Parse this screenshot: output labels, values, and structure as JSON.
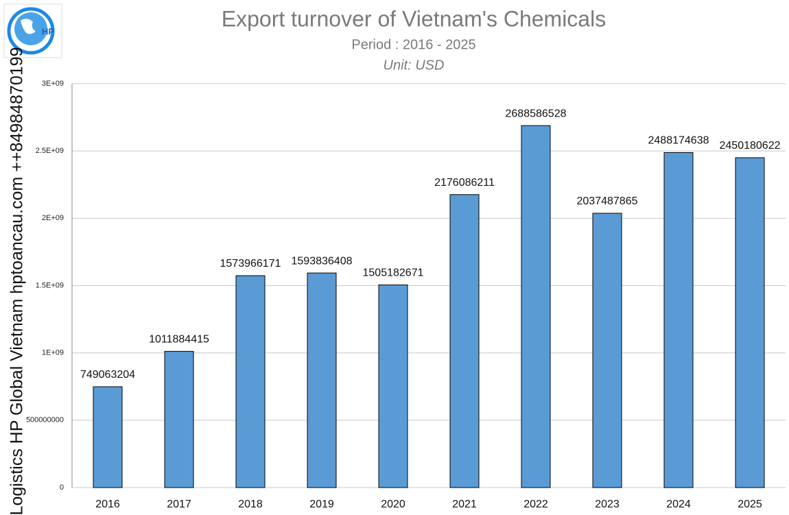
{
  "logo_text": "HP",
  "watermark": "Logistics HP Global Vietnam hptoancau.com ++84984870199",
  "chart_data": {
    "type": "bar",
    "title": "Export turnover of Vietnam's Chemicals",
    "subtitle": "Period : 2016 - 2025",
    "unit": "Unit: USD",
    "categories": [
      "2016",
      "2017",
      "2018",
      "2019",
      "2020",
      "2021",
      "2022",
      "2023",
      "2024",
      "2025"
    ],
    "values": [
      749063204,
      1011884415,
      1573966171,
      1593836408,
      1505182671,
      2176086211,
      2688586528,
      2037487865,
      2488174638,
      2450180622
    ],
    "color": "#5b9bd5",
    "ylim": [
      0,
      3000000000
    ],
    "yticks": [
      0,
      500000000,
      {
        "value": 1000000000,
        "label": "1E+09"
      },
      {
        "value": 1500000000,
        "label": "1.5E+09"
      },
      {
        "value": 2000000000,
        "label": "2E+09"
      },
      {
        "value": 2500000000,
        "label": "2.5E+09"
      },
      {
        "value": 3000000000,
        "label": "3E+09"
      }
    ],
    "grid": true
  }
}
